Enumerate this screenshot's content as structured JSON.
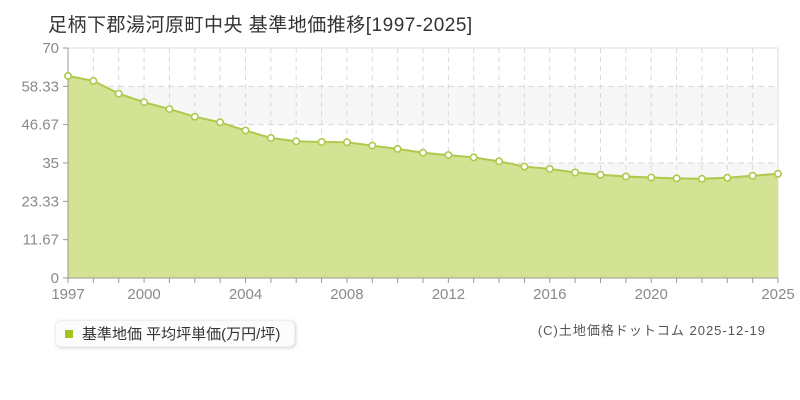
{
  "page": {
    "title": "足柄下郡湯河原町中央 基準地価推移[1997-2025]"
  },
  "chart_data": {
    "type": "area",
    "title": "足柄下郡湯河原町中央 基準地価推移[1997-2025]",
    "xlabel": "",
    "ylabel": "",
    "x": [
      1997,
      1998,
      1999,
      2000,
      2001,
      2002,
      2003,
      2004,
      2005,
      2006,
      2007,
      2008,
      2009,
      2010,
      2011,
      2012,
      2013,
      2014,
      2015,
      2016,
      2017,
      2018,
      2019,
      2020,
      2021,
      2022,
      2023,
      2024,
      2025
    ],
    "values": [
      61.5,
      60.0,
      56.1,
      53.5,
      51.4,
      49.1,
      47.4,
      44.9,
      42.6,
      41.6,
      41.4,
      41.3,
      40.3,
      39.3,
      38.1,
      37.4,
      36.7,
      35.5,
      33.9,
      33.2,
      32.1,
      31.4,
      30.9,
      30.6,
      30.3,
      30.2,
      30.5,
      31.1,
      31.7
    ],
    "series_name": "基準地価 平均坪単価(万円/坪)",
    "ylim": [
      0,
      70
    ],
    "yticks": [
      {
        "v": 0,
        "label": "0"
      },
      {
        "v": 11.67,
        "label": "11.67"
      },
      {
        "v": 23.33,
        "label": "23.33"
      },
      {
        "v": 35,
        "label": "35"
      },
      {
        "v": 46.67,
        "label": "46.67"
      },
      {
        "v": 58.33,
        "label": "58.33"
      },
      {
        "v": 70,
        "label": "70"
      }
    ],
    "xticks": [
      {
        "i": 0,
        "label": "1997"
      },
      {
        "i": 3,
        "label": "2000"
      },
      {
        "i": 7,
        "label": "2004"
      },
      {
        "i": 11,
        "label": "2008"
      },
      {
        "i": 15,
        "label": "2012"
      },
      {
        "i": 19,
        "label": "2016"
      },
      {
        "i": 23,
        "label": "2020"
      },
      {
        "i": 28,
        "label": "2025"
      }
    ],
    "grid": true,
    "legend_position": "bottom-left",
    "colors": {
      "line": "#afc94d",
      "fill": "#d3e293",
      "marker_fill": "#ffffff",
      "band": "#f7f7f7",
      "grid": "#d9d9d9",
      "axis": "#999999",
      "border": "#dddddd",
      "tick_label": "#8a8a8a",
      "legend_bullet": "#a3c41f"
    }
  },
  "legend": {
    "label": "基準地価 平均坪単価(万円/坪)"
  },
  "footer": {
    "copyright": "(C)土地価格ドットコム 2025-12-19"
  }
}
